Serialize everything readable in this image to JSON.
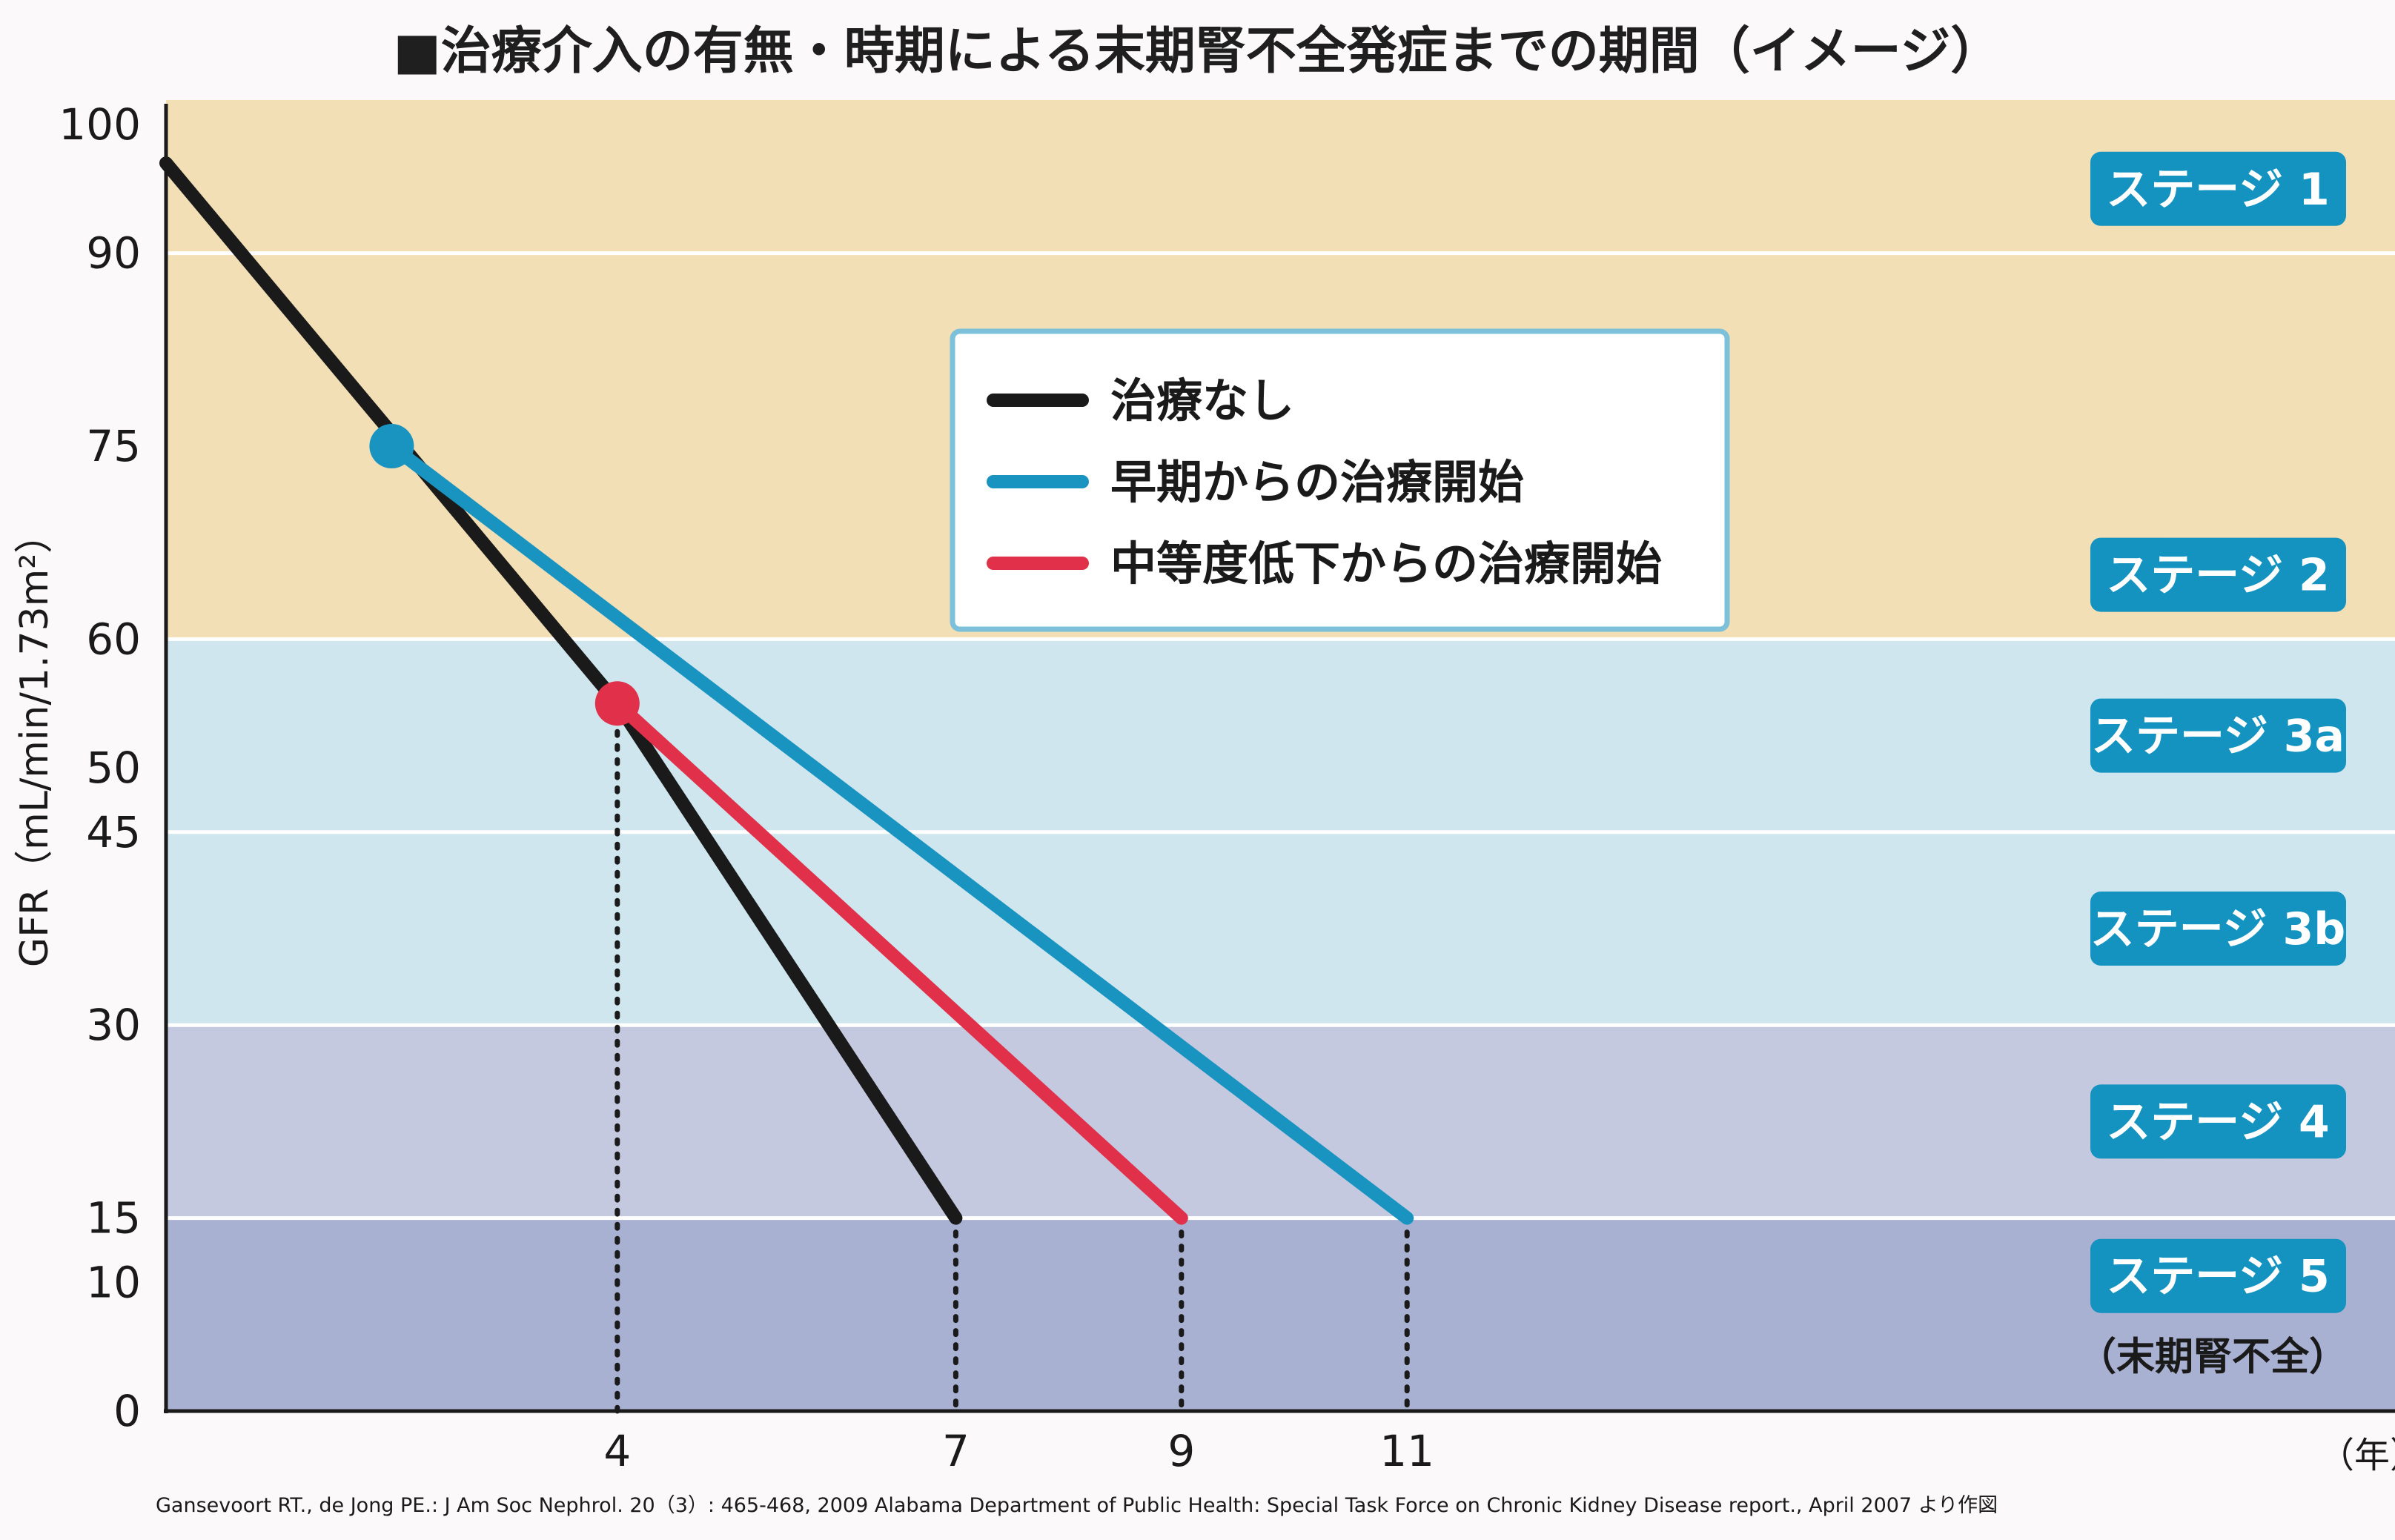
{
  "title": "■治療介入の有無・時期による末期腎不全発症までの期間（イメージ）",
  "source": "Gansevoort RT., de Jong PE.: J Am Soc Nephrol. 20（3）: 465-468, 2009 Alabama Department of Public Health: Special Task Force on Chronic Kidney Disease report., April 2007 より作図",
  "colors": {
    "stage_yellow": "#f2dfb6",
    "stage_blue": "#cfe6ee",
    "stage_lavender": "#c5c9e0",
    "stage_dark": "#a9b1d2",
    "badge": "#1593c0",
    "black": "#1a1a1a",
    "teal": "#1994c1",
    "red": "#e0304a"
  },
  "chart_data": {
    "type": "line",
    "title": "■治療介入の有無・時期による末期腎不全発症までの期間（イメージ）",
    "ylabel": "GFR（mL/min/1.73m²）",
    "xlabel": "（年）",
    "x_range": [
      0,
      12
    ],
    "y_ticks": [
      {
        "value": 0,
        "label": "0"
      },
      {
        "value": 10,
        "label": "10"
      },
      {
        "value": 15,
        "label": "15"
      },
      {
        "value": 30,
        "label": "30"
      },
      {
        "value": 45,
        "label": "45"
      },
      {
        "value": 50,
        "label": "50"
      },
      {
        "value": 60,
        "label": "60"
      },
      {
        "value": 75,
        "label": "75"
      },
      {
        "value": 90,
        "label": "90"
      },
      {
        "value": 100,
        "label": "100"
      }
    ],
    "x_ticks": [
      {
        "value": 4,
        "label": "4"
      },
      {
        "value": 7,
        "label": "7"
      },
      {
        "value": 9,
        "label": "9"
      },
      {
        "value": 11,
        "label": "11"
      }
    ],
    "stages": [
      {
        "label": "ステージ 1",
        "from": 90,
        "to": 100,
        "band": "stage_yellow",
        "label_y": 95
      },
      {
        "label": "ステージ 2",
        "from": 60,
        "to": 90,
        "band": "stage_yellow",
        "label_y": 65
      },
      {
        "label": "ステージ 3a",
        "from": 45,
        "to": 60,
        "band": "stage_blue",
        "label_y": 52.5
      },
      {
        "label": "ステージ 3b",
        "from": 30,
        "to": 45,
        "band": "stage_blue",
        "label_y": 37.5
      },
      {
        "label": "ステージ 4",
        "from": 15,
        "to": 30,
        "band": "stage_lavender",
        "label_y": 22.5
      },
      {
        "label": "ステージ 5",
        "from": 0,
        "to": 15,
        "band": "stage_dark",
        "label_y": 10.5,
        "note": "（末期腎不全）"
      }
    ],
    "series": [
      {
        "name": "治療なし",
        "color": "black",
        "points": [
          [
            0,
            97
          ],
          [
            4,
            55
          ],
          [
            7,
            15
          ]
        ]
      },
      {
        "name": "早期からの治療開始",
        "color": "teal",
        "points": [
          [
            2,
            75
          ],
          [
            11,
            15
          ]
        ],
        "start_marker": true
      },
      {
        "name": "中等度低下からの治療開始",
        "color": "red",
        "points": [
          [
            4,
            55
          ],
          [
            9,
            15
          ]
        ],
        "start_marker": true
      }
    ],
    "dropdown_lines": [
      4,
      7,
      9,
      11
    ],
    "legend_position": "top-center",
    "grid": false
  }
}
